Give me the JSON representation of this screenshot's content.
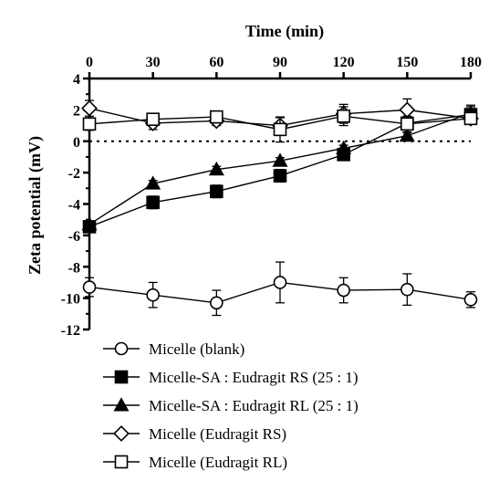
{
  "chart_data": {
    "type": "line",
    "xlabel": "Time (min)",
    "ylabel": "Zeta potential (mV)",
    "x": [
      0,
      30,
      60,
      90,
      120,
      150,
      180
    ],
    "xlim": [
      0,
      180
    ],
    "ylim": [
      -12,
      4
    ],
    "x_ticks": [
      "0",
      "30",
      "60",
      "90",
      "120",
      "150",
      "180"
    ],
    "y_ticks": [
      "4",
      "2",
      "0",
      "-2",
      "-4",
      "-6",
      "-8",
      "-10",
      "-12"
    ],
    "x_axis_position": "top",
    "reference_line": {
      "y": 0,
      "style": "dotted"
    },
    "grid": false,
    "legend_position": "bottom",
    "series": [
      {
        "name": "Micelle (blank)",
        "marker": "circle-open",
        "values": [
          -9.3,
          -9.8,
          -10.3,
          -9.0,
          -9.5,
          -9.45,
          -10.1
        ],
        "errors": [
          0.6,
          0.8,
          0.8,
          1.3,
          0.8,
          1.0,
          0.5
        ]
      },
      {
        "name": "Micelle-SA : Eudragit RS (25 : 1)",
        "marker": "square-filled",
        "values": [
          -5.45,
          -3.9,
          -3.2,
          -2.2,
          -0.85,
          1.15,
          1.7
        ],
        "errors": [
          0.2,
          0.4,
          0.4,
          0.4,
          0.3,
          0.3,
          0.6
        ]
      },
      {
        "name": "Micelle-SA : Eudragit RL (25 : 1)",
        "marker": "triangle-filled",
        "values": [
          -5.3,
          -2.7,
          -1.8,
          -1.25,
          -0.45,
          0.35,
          1.8
        ],
        "errors": [
          0.2,
          0.2,
          0.2,
          0.2,
          0.2,
          0.2,
          0.4
        ]
      },
      {
        "name": "Micelle (Eudragit RS)",
        "marker": "diamond-open",
        "values": [
          2.1,
          1.15,
          1.3,
          1.0,
          1.75,
          2.0,
          1.45
        ],
        "errors": [
          0.5,
          0.4,
          0.3,
          0.5,
          0.6,
          0.7,
          0.3
        ]
      },
      {
        "name": "Micelle (Eudragit RL)",
        "marker": "square-open",
        "values": [
          1.1,
          1.4,
          1.55,
          0.75,
          1.6,
          1.1,
          1.45
        ],
        "errors": [
          0.4,
          0.3,
          0.3,
          0.8,
          0.6,
          0.5,
          0.3
        ]
      }
    ]
  }
}
